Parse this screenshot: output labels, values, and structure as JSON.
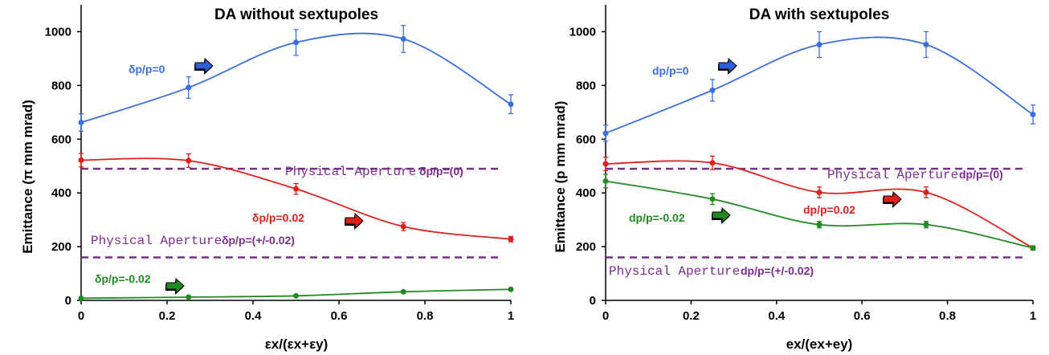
{
  "chart_data": [
    {
      "type": "line",
      "title": "DA without sextupoles",
      "xlabel": "εx/(εx+εy)",
      "ylabel": "Emittance (π mm mrad)",
      "xlim": [
        0,
        1
      ],
      "ylim": [
        0,
        1100
      ],
      "x_ticks": [
        "0",
        "0.2",
        "0.4",
        "0.6",
        "0.8",
        "1"
      ],
      "y_ticks": [
        "0",
        "200",
        "400",
        "600",
        "800",
        "1000"
      ],
      "grid": false,
      "series": [
        {
          "name": "δp/p=0",
          "color": "#3b6fe0",
          "x": [
            0,
            0.25,
            0.5,
            0.75,
            1
          ],
          "y": [
            662,
            792,
            960,
            973,
            730
          ],
          "err": [
            32,
            40,
            48,
            50,
            35
          ],
          "arrow_color": "#2f5fd6"
        },
        {
          "name": "δp/p=0.02",
          "color": "#e0201b",
          "x": [
            0,
            0.25,
            0.5,
            0.75,
            1
          ],
          "y": [
            522,
            520,
            415,
            275,
            228
          ],
          "err": [
            25,
            25,
            20,
            15,
            10
          ],
          "arrow_color": "#e0201b"
        },
        {
          "name": "δp/p=-0.02",
          "color": "#218a21",
          "x": [
            0,
            0.25,
            0.5,
            0.75,
            1
          ],
          "y": [
            8,
            12,
            17,
            32,
            41
          ],
          "err": [
            0,
            0,
            0,
            0,
            0
          ],
          "arrow_color": "#218a21"
        }
      ],
      "reference_lines": [
        {
          "y": 490,
          "label": "Physical Aperture",
          "label_overlap": "δp/p=(0)"
        },
        {
          "y": 160,
          "label": "Physical Aperture",
          "label_overlap": "δp/p=(+/-0.02)"
        }
      ]
    },
    {
      "type": "line",
      "title": "DA with sextupoles",
      "xlabel": "ex/(ex+ey)",
      "ylabel": "Emittance (p mm mrad)",
      "xlim": [
        0,
        1
      ],
      "ylim": [
        0,
        1100
      ],
      "x_ticks": [
        "0",
        "0.2",
        "0.4",
        "0.6",
        "0.8",
        "1"
      ],
      "y_ticks": [
        "0",
        "200",
        "400",
        "600",
        "800",
        "1000"
      ],
      "grid": false,
      "series": [
        {
          "name": "dp/p=0",
          "color": "#3b6fe0",
          "x": [
            0,
            0.25,
            0.5,
            0.75,
            1
          ],
          "y": [
            622,
            782,
            952,
            952,
            692
          ],
          "err": [
            30,
            40,
            48,
            48,
            35
          ],
          "arrow_color": "#2f5fd6"
        },
        {
          "name": "dp/p=0.02",
          "color": "#e0201b",
          "x": [
            0,
            0.25,
            0.5,
            0.75,
            1
          ],
          "y": [
            508,
            512,
            402,
            402,
            195
          ],
          "err": [
            25,
            25,
            20,
            20,
            8
          ],
          "arrow_color": "#e0201b"
        },
        {
          "name": "dp/p=-0.02",
          "color": "#218a21",
          "x": [
            0,
            0.25,
            0.5,
            0.75,
            1
          ],
          "y": [
            444,
            377,
            282,
            282,
            195
          ],
          "err": [
            25,
            20,
            12,
            12,
            8
          ],
          "arrow_color": "#218a21"
        }
      ],
      "reference_lines": [
        {
          "y": 490,
          "label": "Physical Aperture",
          "label_overlap": "dp/p=(0)"
        },
        {
          "y": 160,
          "label": "Physical Aperture",
          "label_overlap": "dp/p=(+/-0.02)"
        }
      ]
    }
  ]
}
